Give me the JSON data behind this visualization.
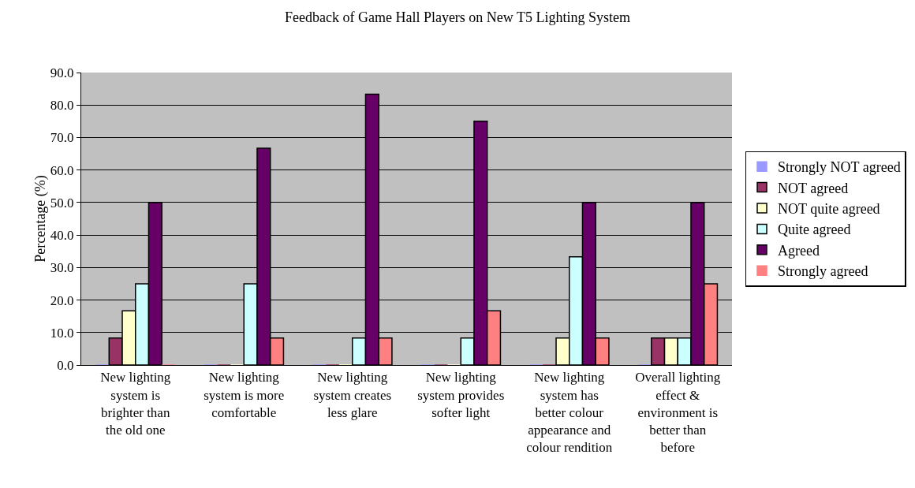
{
  "chart_data": {
    "type": "bar",
    "title": "Feedback of Game Hall Players on New T5 Lighting System",
    "ylabel": "Percentage (%)",
    "categories": [
      "New lighting system is brighter than the old one",
      "New lighting system is more comfortable",
      "New lighting system creates less glare",
      "New lighting system provides softer light",
      "New lighting system has better colour appearance and colour rendition",
      "Overall lighting effect & environment is better than before"
    ],
    "series": [
      {
        "name": "Strongly NOT agreed",
        "color": "#9999ff",
        "values": [
          0,
          0,
          0,
          0,
          0,
          0
        ]
      },
      {
        "name": "NOT agreed",
        "color": "#993366",
        "values": [
          8.3,
          0,
          0,
          0,
          0,
          8.3
        ]
      },
      {
        "name": "NOT quite agreed",
        "color": "#ffffcc",
        "values": [
          16.7,
          0,
          0,
          0,
          8.3,
          8.3
        ]
      },
      {
        "name": "Quite agreed",
        "color": "#ccffff",
        "values": [
          25,
          25,
          8.3,
          8.3,
          33.3,
          8.3
        ]
      },
      {
        "name": "Agreed",
        "color": "#660066",
        "values": [
          50,
          66.7,
          83.3,
          75,
          50,
          50
        ]
      },
      {
        "name": "Strongly agreed",
        "color": "#ff8080",
        "values": [
          0,
          8.3,
          8.3,
          16.7,
          8.3,
          25
        ]
      }
    ],
    "ylim": [
      0,
      90
    ],
    "yticks": [
      {
        "value": 0,
        "label": "0.0"
      },
      {
        "value": 10,
        "label": "10.0"
      },
      {
        "value": 20,
        "label": "20.0"
      },
      {
        "value": 30,
        "label": "30.0"
      },
      {
        "value": 40,
        "label": "40.0"
      },
      {
        "value": 50,
        "label": "50.0"
      },
      {
        "value": 60,
        "label": "60.0"
      },
      {
        "value": 70,
        "label": "70.0"
      },
      {
        "value": 80,
        "label": "80.0"
      },
      {
        "value": 90,
        "label": "90.0"
      }
    ],
    "grid": "y",
    "legend": "right"
  }
}
